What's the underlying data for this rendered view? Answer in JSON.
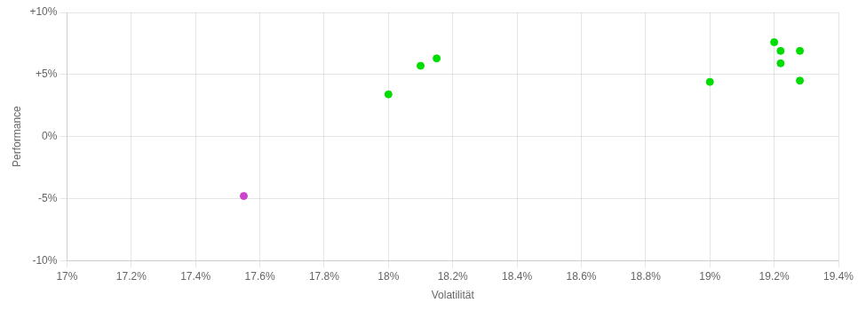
{
  "chart_data": {
    "type": "scatter",
    "xlabel": "Volatilität",
    "ylabel": "Performance",
    "xlim": [
      0.17,
      0.194
    ],
    "ylim": [
      -0.1,
      0.1
    ],
    "xticks": [
      {
        "value": 0.17,
        "label": "17%"
      },
      {
        "value": 0.172,
        "label": "17.2%"
      },
      {
        "value": 0.174,
        "label": "17.4%"
      },
      {
        "value": 0.176,
        "label": "17.6%"
      },
      {
        "value": 0.178,
        "label": "17.8%"
      },
      {
        "value": 0.18,
        "label": "18%"
      },
      {
        "value": 0.182,
        "label": "18.2%"
      },
      {
        "value": 0.184,
        "label": "18.4%"
      },
      {
        "value": 0.186,
        "label": "18.6%"
      },
      {
        "value": 0.188,
        "label": "18.8%"
      },
      {
        "value": 0.19,
        "label": "19%"
      },
      {
        "value": 0.192,
        "label": "19.2%"
      },
      {
        "value": 0.194,
        "label": "19.4%"
      }
    ],
    "yticks": [
      {
        "value": -0.1,
        "label": "-10%"
      },
      {
        "value": -0.05,
        "label": "-5%"
      },
      {
        "value": 0.0,
        "label": "0%"
      },
      {
        "value": 0.05,
        "label": "+5%"
      },
      {
        "value": 0.1,
        "label": "+10%"
      }
    ],
    "grid": true,
    "series": [
      {
        "color": "#00dd00",
        "x": [
          0.18,
          0.181,
          0.1815,
          0.19,
          0.192,
          0.1922,
          0.1922,
          0.1928,
          0.1928
        ],
        "values": [
          0.034,
          0.057,
          0.063,
          0.044,
          0.076,
          0.069,
          0.059,
          0.069,
          0.045
        ]
      },
      {
        "color": "#cc44cc",
        "x": [
          0.1755
        ],
        "values": [
          -0.048
        ]
      }
    ]
  }
}
